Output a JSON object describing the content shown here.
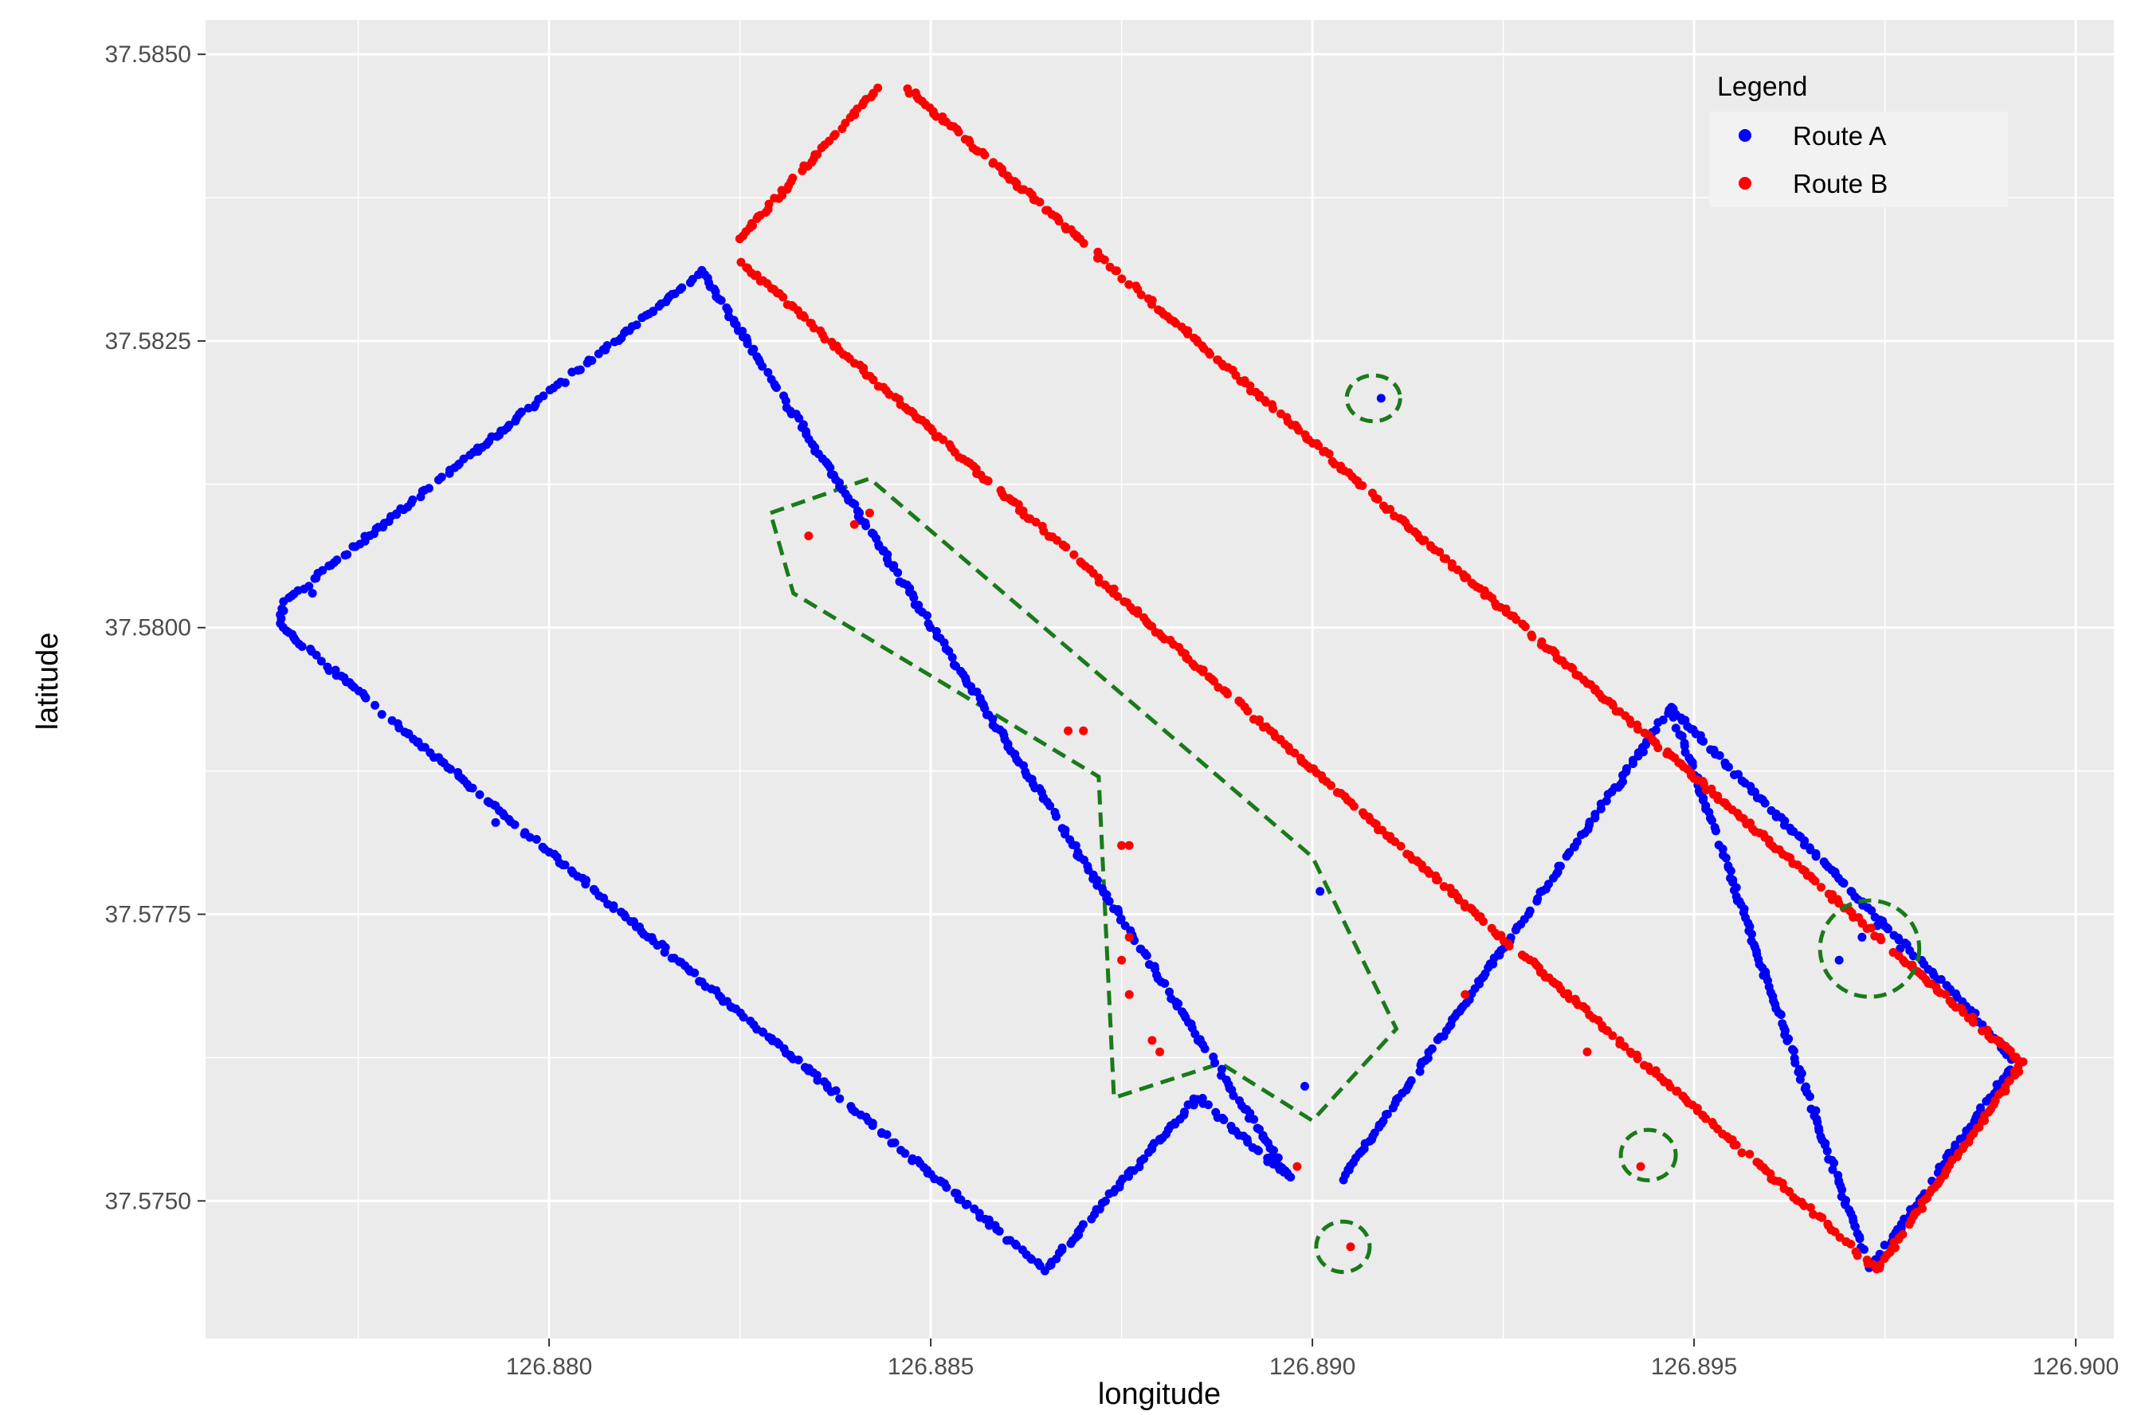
{
  "chart_data": {
    "type": "scatter",
    "xlabel": "longitude",
    "ylabel": "latitude",
    "xlim": [
      126.8755,
      126.9005
    ],
    "ylim": [
      37.5738,
      37.5853
    ],
    "x_ticks": [
      126.88,
      126.885,
      126.89,
      126.895,
      126.9
    ],
    "x_tick_labels": [
      "126.880",
      "126.885",
      "126.890",
      "126.895",
      "126.900"
    ],
    "y_ticks": [
      37.575,
      37.5775,
      37.58,
      37.5825,
      37.585
    ],
    "y_tick_labels": [
      "37.5750",
      "37.5775",
      "37.5800",
      "37.5825",
      "37.5850"
    ],
    "grid": true,
    "legend": {
      "title": "Legend",
      "position": "top-right",
      "entries": [
        {
          "label": "Route A",
          "color": "#0000ff"
        },
        {
          "label": "Route B",
          "color": "#ff0000"
        }
      ]
    },
    "series": [
      {
        "name": "Route A",
        "color": "#0000ff",
        "path": [
          [
            126.882,
            37.5831
          ],
          [
            126.8765,
            37.5802
          ],
          [
            126.8765,
            37.58
          ],
          [
            126.8865,
            37.5744
          ],
          [
            126.8885,
            37.5759
          ],
          [
            126.8897,
            37.5752
          ],
          [
            126.882,
            37.5831
          ]
        ],
        "segments": [
          [
            [
              126.8904,
              37.5752
            ],
            [
              126.8947,
              37.5793
            ],
            [
              126.8987,
              37.5766
            ],
            [
              126.8992,
              37.5762
            ],
            [
              126.8973,
              37.5744
            ],
            [
              126.8947,
              37.5793
            ]
          ]
        ],
        "outliers": [
          [
            126.8769,
            37.5803
          ],
          [
            126.8793,
            37.5783
          ],
          [
            126.8901,
            37.5777
          ],
          [
            126.8885,
            37.5764
          ],
          [
            126.8899,
            37.576
          ],
          [
            126.8909,
            37.582
          ],
          [
            126.8969,
            37.5771
          ],
          [
            126.8972,
            37.5773
          ],
          [
            126.8974,
            37.5774
          ],
          [
            126.8977,
            37.5772
          ]
        ]
      },
      {
        "name": "Route B",
        "color": "#ff0000",
        "path": [
          [
            126.8825,
            37.5834
          ],
          [
            126.8843,
            37.5847
          ]
        ],
        "segments": [
          [
            [
              126.8847,
              37.5847
            ],
            [
              126.8993,
              37.5762
            ],
            [
              126.8974,
              37.5744
            ],
            [
              126.8825,
              37.5832
            ]
          ]
        ],
        "outliers": [
          [
            126.8834,
            37.5808
          ],
          [
            126.884,
            37.5809
          ],
          [
            126.8842,
            37.581
          ],
          [
            126.8868,
            37.5791
          ],
          [
            126.887,
            37.5791
          ],
          [
            126.8875,
            37.5781
          ],
          [
            126.8876,
            37.5781
          ],
          [
            126.8876,
            37.5773
          ],
          [
            126.8876,
            37.5768
          ],
          [
            126.8875,
            37.5771
          ],
          [
            126.8879,
            37.5764
          ],
          [
            126.888,
            37.5763
          ],
          [
            126.8898,
            37.5753
          ],
          [
            126.8905,
            37.5746
          ],
          [
            126.8943,
            37.5753
          ],
          [
            126.892,
            37.5768
          ],
          [
            126.8936,
            37.5763
          ]
        ]
      }
    ],
    "annotations": {
      "polygon": {
        "color": "#1a7a1a",
        "points": [
          [
            126.8829,
            37.581
          ],
          [
            126.8842,
            37.5813
          ],
          [
            126.89,
            37.578
          ],
          [
            126.8911,
            37.5765
          ],
          [
            126.89,
            37.5757
          ],
          [
            126.8888,
            37.5762
          ],
          [
            126.8874,
            37.5759
          ],
          [
            126.8872,
            37.5787
          ],
          [
            126.8832,
            37.5803
          ]
        ]
      },
      "circles": [
        {
          "center": [
            126.8908,
            37.582
          ],
          "r": [
            0.00035,
            0.0002
          ]
        },
        {
          "center": [
            126.8973,
            37.5772
          ],
          "r": [
            0.00065,
            0.00042
          ]
        },
        {
          "center": [
            126.8944,
            37.5754
          ],
          "r": [
            0.00036,
            0.00022
          ]
        },
        {
          "center": [
            126.8904,
            37.5746
          ],
          "r": [
            0.00035,
            0.00022
          ]
        }
      ]
    }
  }
}
